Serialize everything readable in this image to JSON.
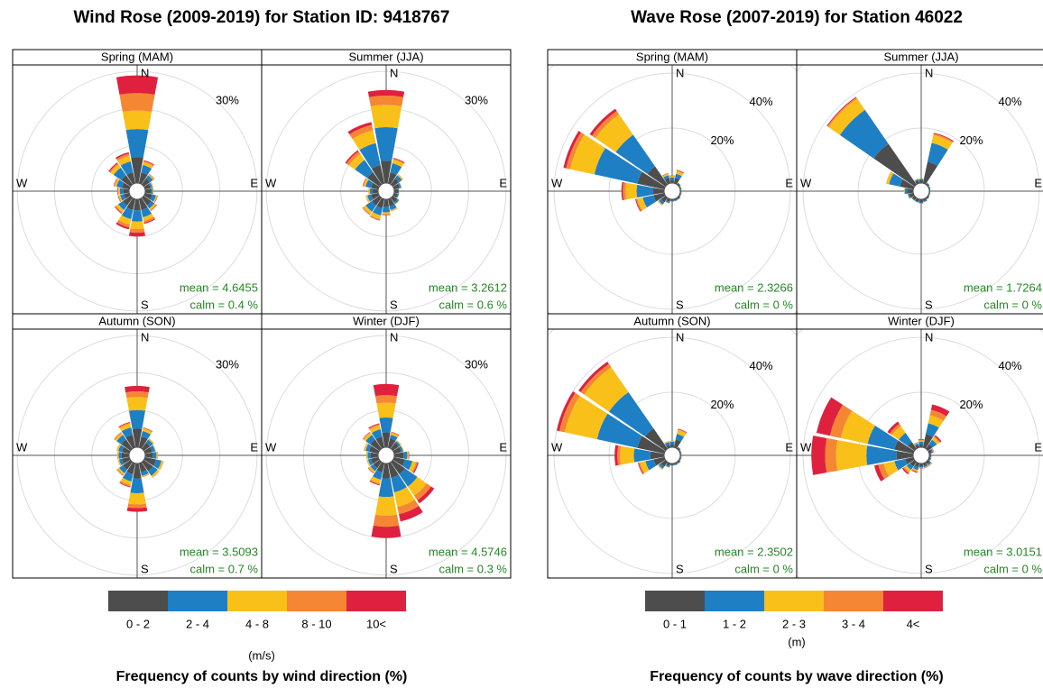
{
  "chart_data": [
    {
      "type": "rose",
      "title": "Wind Rose (2009-2019) for Station ID: 9418767",
      "footer": "Frequency of counts by wind direction (%)",
      "unit": "(m/s)",
      "compass": [
        "N",
        "E",
        "S",
        "W"
      ],
      "legend": {
        "labels": [
          "0 - 2",
          "2 - 4",
          "4 - 8",
          "8 - 10",
          "10<"
        ],
        "colors": [
          "#4d4d4d",
          "#1f7fc4",
          "#f9c01a",
          "#f58634",
          "#e0203f"
        ]
      },
      "rlim": [
        0,
        31
      ],
      "rticks": [
        {
          "value": 10,
          "label": null
        },
        {
          "value": 20,
          "label": null
        },
        {
          "value": 30,
          "label": "30%"
        }
      ],
      "panels": [
        {
          "name": "Spring (MAM)",
          "mean": "mean = 4.6455",
          "calm": "calm = 0.4 %",
          "series": [
            {
              "values": [
                7,
                3,
                2,
                1.5,
                1.5,
                2,
                2.5,
                3,
                3,
                3,
                2.5,
                1.5,
                1.5,
                2,
                3,
                3
              ]
            },
            {
              "values": [
                7.5,
                2,
                1,
                0.5,
                0.5,
                1,
                1,
                2,
                3,
                2.5,
                1.5,
                1,
                1,
                1.5,
                2.5,
                3
              ]
            },
            {
              "values": [
                5,
                0.8,
                0.3,
                0.2,
                0.2,
                0.3,
                0.5,
                1,
                2,
                1.5,
                0.7,
                0.4,
                0.4,
                0.5,
                1,
                1.5
              ]
            },
            {
              "values": [
                4.7,
                0.3,
                0.1,
                0.1,
                0.1,
                0.1,
                0.2,
                0.5,
                1,
                0.8,
                0.3,
                0.2,
                0.2,
                0.2,
                0.4,
                0.6
              ]
            },
            {
              "values": [
                4.7,
                0.2,
                0.1,
                0,
                0,
                0.1,
                0.1,
                0.3,
                1,
                0.5,
                0.2,
                0.1,
                0.1,
                0.1,
                0.3,
                0.4
              ]
            }
          ]
        },
        {
          "name": "Summer (JJA)",
          "mean": "mean = 3.2612",
          "calm": "calm = 0.6 %",
          "series": [
            {
              "values": [
                6,
                3,
                2,
                1.5,
                1,
                1,
                1.5,
                2,
                2,
                2.5,
                2.5,
                2,
                1.5,
                2,
                4,
                5
              ]
            },
            {
              "values": [
                9,
                2.5,
                1,
                0.5,
                0.3,
                0.3,
                0.5,
                1,
                1.5,
                2,
                2,
                1,
                0.7,
                1.5,
                4,
                6
              ]
            },
            {
              "values": [
                6,
                1,
                0.3,
                0.1,
                0.1,
                0.1,
                0.2,
                0.3,
                0.5,
                1,
                0.8,
                0.4,
                0.3,
                0.5,
                2,
                3.5
              ]
            },
            {
              "values": [
                2.5,
                0.3,
                0.1,
                0,
                0,
                0,
                0,
                0.1,
                0.2,
                0.3,
                0.2,
                0.1,
                0.1,
                0.2,
                0.8,
                1.5
              ]
            },
            {
              "values": [
                1.5,
                0.2,
                0,
                0,
                0,
                0,
                0,
                0,
                0.1,
                0.1,
                0.1,
                0,
                0,
                0.1,
                0.4,
                0.8
              ]
            }
          ]
        },
        {
          "name": "Autumn (SON)",
          "mean": "mean = 3.5093",
          "calm": "calm = 0.7 %",
          "series": [
            {
              "values": [
                5,
                3,
                2,
                2,
                2,
                3,
                3,
                2.5,
                4,
                3,
                2.5,
                2,
                2,
                2,
                3,
                3.5
              ]
            },
            {
              "values": [
                5,
                1.5,
                1,
                0.8,
                1,
                1.5,
                1.5,
                1,
                4,
                2,
                1.2,
                0.8,
                0.8,
                1,
                1.5,
                2
              ]
            },
            {
              "values": [
                3.5,
                0.7,
                0.3,
                0.2,
                0.3,
                0.5,
                0.5,
                0.3,
                3,
                1,
                0.5,
                0.3,
                0.3,
                0.4,
                0.6,
                1
              ]
            },
            {
              "values": [
                1.5,
                0.2,
                0.1,
                0,
                0.1,
                0.1,
                0.1,
                0.1,
                1,
                0.4,
                0.2,
                0.1,
                0.1,
                0.1,
                0.2,
                0.3
              ]
            },
            {
              "values": [
                1.5,
                0.1,
                0,
                0,
                0,
                0,
                0,
                0,
                1,
                0.2,
                0.1,
                0,
                0,
                0,
                0.1,
                0.2
              ]
            }
          ]
        },
        {
          "name": "Winter (DJF)",
          "mean": "mean = 4.5746",
          "calm": "calm = 0.3 %",
          "series": [
            {
              "values": [
                4,
                2.5,
                2,
                2,
                2.5,
                3,
                4,
                4,
                4,
                2.5,
                2,
                2,
                2,
                2.5,
                3,
                3
              ]
            },
            {
              "values": [
                4,
                1,
                0.5,
                0.5,
                1,
                2,
                4,
                4,
                5,
                2,
                1,
                0.8,
                0.8,
                1,
                1.5,
                2
              ]
            },
            {
              "values": [
                4,
                0.5,
                0.2,
                0.2,
                0.3,
                1,
                3,
                4,
                5,
                1,
                0.5,
                0.3,
                0.3,
                0.4,
                0.7,
                1
              ]
            },
            {
              "values": [
                2,
                0.2,
                0.1,
                0,
                0.1,
                0.4,
                1.5,
                2,
                3,
                0.4,
                0.2,
                0.1,
                0.1,
                0.1,
                0.2,
                0.4
              ]
            },
            {
              "values": [
                3,
                0.1,
                0,
                0,
                0.1,
                0.3,
                1,
                2,
                3,
                0.2,
                0.1,
                0,
                0,
                0,
                0.1,
                0.2
              ]
            }
          ]
        }
      ]
    },
    {
      "type": "rose",
      "title": "Wave Rose (2007-2019) for Station 46022",
      "footer": "Frequency of counts by wave direction (%)",
      "unit": "(m)",
      "compass": [
        "N",
        "E",
        "S",
        "W"
      ],
      "legend": {
        "labels": [
          "0 - 1",
          "1 - 2",
          "2 - 3",
          "3 - 4",
          "4<"
        ],
        "colors": [
          "#4d4d4d",
          "#1f7fc4",
          "#f9c01a",
          "#f58634",
          "#e0203f"
        ]
      },
      "rlim": [
        0,
        42
      ],
      "rticks": [
        {
          "value": 20,
          "label": "20%"
        },
        {
          "value": 40,
          "label": "40%"
        },
        {
          "value": 60,
          "label": null
        }
      ],
      "panels": [
        {
          "name": "Spring (MAM)",
          "mean": "mean = 2.3266",
          "calm": "calm = 0 %",
          "series": [
            {
              "values": [
                1,
                2,
                0.5,
                0.3,
                0.3,
                0.3,
                0.5,
                0.5,
                0.5,
                1,
                2,
                4,
                4,
                10,
                8,
                2
              ]
            },
            {
              "values": [
                1,
                1.5,
                0.3,
                0.2,
                0.2,
                0.2,
                0.3,
                0.3,
                0.3,
                0.5,
                1,
                4,
                6,
                16,
                14,
                1
              ]
            },
            {
              "values": [
                0.5,
                1,
                0.1,
                0.1,
                0.1,
                0.1,
                0.1,
                0.1,
                0.1,
                0.2,
                0.4,
                2,
                4,
                9,
                9,
                0.5
              ]
            },
            {
              "values": [
                0.2,
                0.3,
                0,
                0,
                0,
                0,
                0,
                0,
                0,
                0,
                0.1,
                0.5,
                1,
                1.5,
                1.5,
                0.2
              ]
            },
            {
              "values": [
                0.1,
                0.2,
                0,
                0,
                0,
                0,
                0,
                0,
                0,
                0,
                0,
                0.3,
                0.5,
                1,
                1,
                0.1
              ]
            }
          ]
        },
        {
          "name": "Summer (JJA)",
          "mean": "mean = 1.7264",
          "calm": "calm = 0 %",
          "series": [
            {
              "values": [
                1,
                8,
                0.5,
                0.3,
                0.3,
                0.3,
                0.5,
                0.8,
                1,
                1,
                1,
                1.5,
                2,
                5,
                18,
                1
              ]
            },
            {
              "values": [
                0.5,
                7,
                0.3,
                0.2,
                0.1,
                0.1,
                0.2,
                0.3,
                0.5,
                0.3,
                0.3,
                0.5,
                1,
                4,
                15,
                0.5
              ]
            },
            {
              "values": [
                0.2,
                3,
                0.1,
                0,
                0,
                0,
                0,
                0.1,
                0.1,
                0.1,
                0.1,
                0.2,
                0.3,
                1,
                5,
                0.2
              ]
            },
            {
              "values": [
                0,
                0.5,
                0,
                0,
                0,
                0,
                0,
                0,
                0,
                0,
                0,
                0,
                0,
                0.1,
                0.5,
                0
              ]
            },
            {
              "values": [
                0,
                0.3,
                0,
                0,
                0,
                0,
                0,
                0,
                0,
                0,
                0,
                0,
                0,
                0,
                0.3,
                0
              ]
            }
          ]
        },
        {
          "name": "Autumn (SON)",
          "mean": "mean = 2.3502",
          "calm": "calm = 0 %",
          "series": [
            {
              "values": [
                1,
                3,
                0.5,
                0.3,
                0.3,
                0.3,
                0.5,
                0.5,
                0.5,
                1,
                2,
                4,
                5,
                10,
                9,
                1
              ]
            },
            {
              "values": [
                1,
                2,
                0.3,
                0.2,
                0.2,
                0.2,
                0.3,
                0.3,
                0.3,
                0.5,
                1,
                3,
                6,
                15,
                16,
                1
              ]
            },
            {
              "values": [
                0.3,
                1.5,
                0.1,
                0.1,
                0.1,
                0.1,
                0.1,
                0.1,
                0.1,
                0.2,
                0.4,
                2,
                5,
                12,
                11,
                0.3
              ]
            },
            {
              "values": [
                0.1,
                0.3,
                0,
                0,
                0,
                0,
                0,
                0,
                0,
                0,
                0.1,
                0.5,
                1,
                2,
                1.5,
                0.1
              ]
            },
            {
              "values": [
                0,
                0.2,
                0,
                0,
                0,
                0,
                0,
                0,
                0,
                0,
                0,
                0.3,
                1,
                1,
                1,
                0
              ]
            }
          ]
        },
        {
          "name": "Winter (DJF)",
          "mean": "mean = 3.0151",
          "calm": "calm = 0 %",
          "series": [
            {
              "values": [
                1,
                5,
                2,
                1,
                0.5,
                0.5,
                1,
                1,
                1,
                1.5,
                2,
                3,
                6,
                7,
                3,
                1
              ]
            },
            {
              "values": [
                1,
                4,
                2,
                0.5,
                0.3,
                0.3,
                0.5,
                0.5,
                0.5,
                1,
                1.5,
                4,
                11,
                10,
                4,
                0.5
              ]
            },
            {
              "values": [
                0.5,
                3,
                1,
                0.2,
                0.1,
                0.1,
                0.2,
                0.2,
                0.2,
                0.5,
                1,
                4,
                11,
                10,
                3,
                0.3
              ]
            },
            {
              "values": [
                0.3,
                2,
                0.5,
                0.1,
                0,
                0,
                0.1,
                0.1,
                0.1,
                0.3,
                0.5,
                2,
                4,
                4,
                1,
                0.1
              ]
            },
            {
              "values": [
                0.2,
                2,
                0.5,
                0.1,
                0,
                0,
                0.1,
                0.1,
                0.1,
                0.3,
                0.5,
                1.5,
                5,
                5,
                1,
                0.1
              ]
            }
          ]
        }
      ]
    }
  ]
}
